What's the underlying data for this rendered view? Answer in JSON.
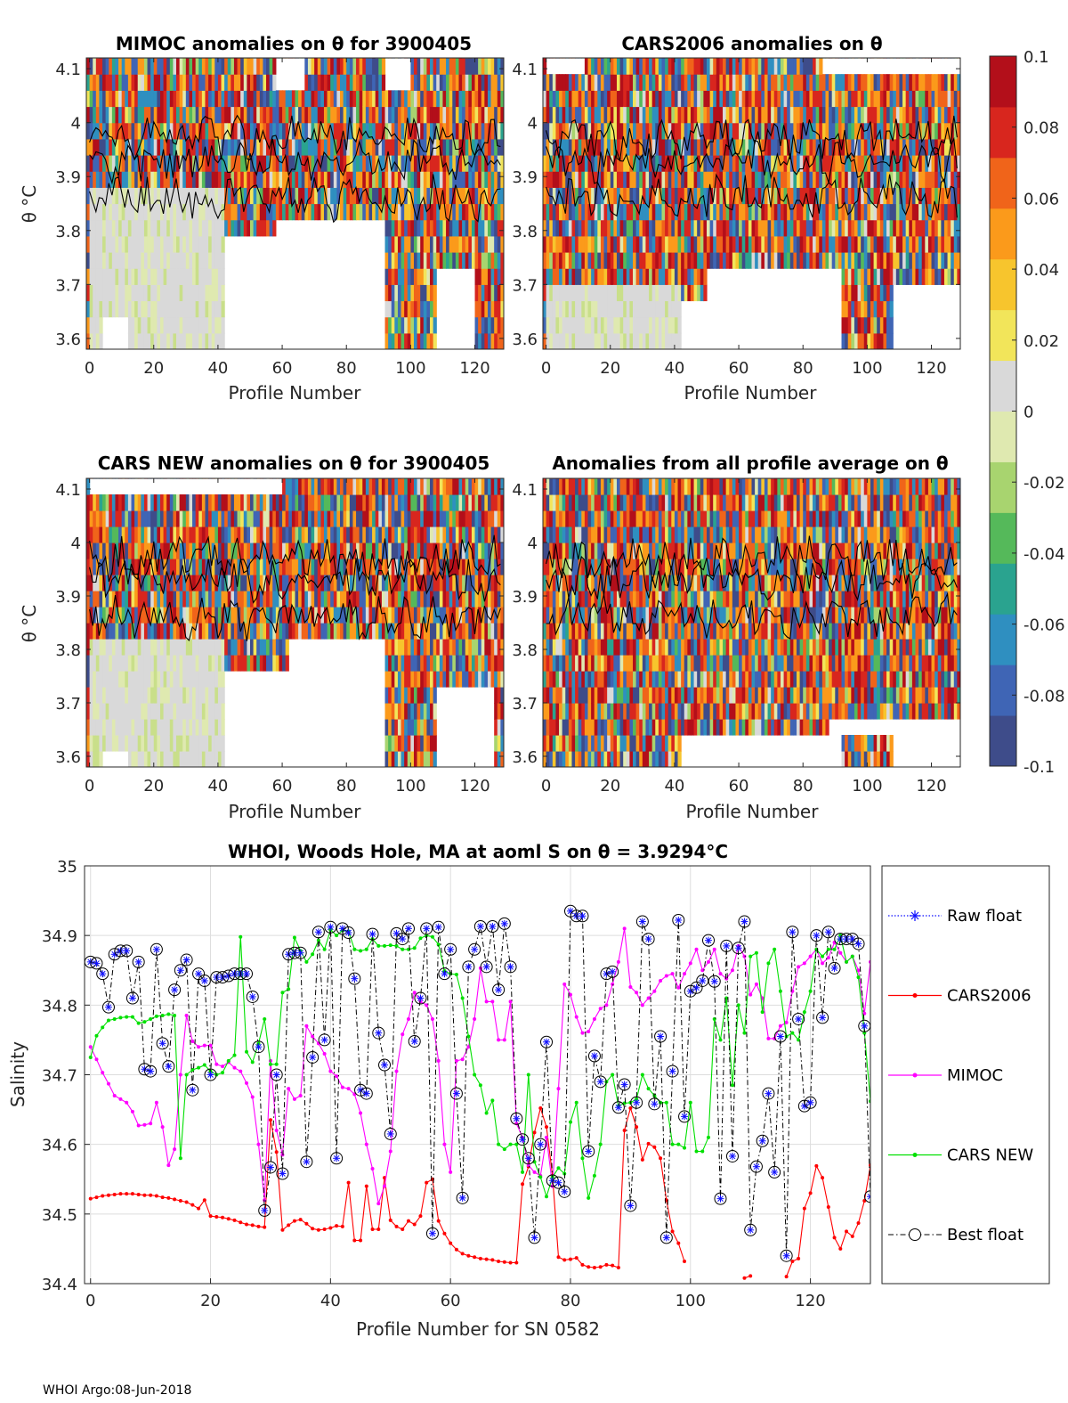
{
  "footer": "WHOI Argo:08-Jun-2018",
  "chart_data": [
    {
      "type": "heatmap",
      "title": "MIMOC anomalies on θ  for 3900405",
      "xlabel": "Profile Number",
      "ylabel": "θ °C",
      "xticks": [
        "0",
        "20",
        "40",
        "60",
        "80",
        "100",
        "120"
      ],
      "yticks": [
        "3.6",
        "3.7",
        "3.8",
        "3.9",
        "4",
        "4.1"
      ],
      "xlim": [
        -1,
        129
      ],
      "ylim": [
        3.58,
        4.12
      ],
      "pattern_seed": 11,
      "gaps": [
        [
          4,
          12,
          3.58,
          3.63
        ],
        [
          42,
          58,
          3.58,
          3.8
        ],
        [
          58,
          92,
          3.58,
          3.83
        ],
        [
          108,
          120,
          3.58,
          3.72
        ],
        [
          58,
          67,
          4.06,
          4.12
        ],
        [
          92,
          100,
          4.06,
          4.12
        ]
      ],
      "cool_region": [
        0,
        42,
        3.58,
        3.87
      ]
    },
    {
      "type": "heatmap",
      "title": "CARS2006 anomalies on θ",
      "xlabel": "Profile Number",
      "ylabel": "",
      "xticks": [
        "0",
        "20",
        "40",
        "60",
        "80",
        "100",
        "120"
      ],
      "yticks": [
        "3.6",
        "3.7",
        "3.8",
        "3.9",
        "4",
        "4.1"
      ],
      "xlim": [
        -1,
        129
      ],
      "ylim": [
        3.58,
        4.12
      ],
      "pattern_seed": 23,
      "gaps": [
        [
          42,
          92,
          3.58,
          3.68
        ],
        [
          50,
          92,
          3.68,
          3.73
        ],
        [
          108,
          130,
          3.58,
          3.7
        ],
        [
          0,
          12,
          4.08,
          4.12
        ],
        [
          86,
          130,
          4.08,
          4.12
        ]
      ],
      "cool_region": [
        0,
        42,
        3.58,
        3.7
      ]
    },
    {
      "type": "heatmap",
      "title": "CARS NEW anomalies on θ for 3900405",
      "xlabel": "Profile Number",
      "ylabel": "θ °C",
      "xticks": [
        "0",
        "20",
        "40",
        "60",
        "80",
        "100",
        "120"
      ],
      "yticks": [
        "3.6",
        "3.7",
        "3.8",
        "3.9",
        "4",
        "4.1"
      ],
      "xlim": [
        -1,
        129
      ],
      "ylim": [
        3.58,
        4.12
      ],
      "pattern_seed": 37,
      "gaps": [
        [
          4,
          12,
          3.58,
          3.62
        ],
        [
          42,
          62,
          3.58,
          3.76
        ],
        [
          62,
          92,
          3.58,
          3.83
        ],
        [
          108,
          126,
          3.58,
          3.72
        ],
        [
          0,
          60,
          4.08,
          4.12
        ]
      ],
      "cool_region": [
        0,
        42,
        3.58,
        3.83
      ]
    },
    {
      "type": "heatmap",
      "title": "Anomalies from all profile average on θ",
      "xlabel": "Profile Number",
      "ylabel": "",
      "xticks": [
        "0",
        "20",
        "40",
        "60",
        "80",
        "100",
        "120"
      ],
      "yticks": [
        "3.6",
        "3.7",
        "3.8",
        "3.9",
        "4",
        "4.1"
      ],
      "xlim": [
        -1,
        129
      ],
      "ylim": [
        3.58,
        4.12
      ],
      "pattern_seed": 53,
      "gaps": [
        [
          42,
          92,
          3.58,
          3.63
        ],
        [
          108,
          130,
          3.58,
          3.65
        ],
        [
          88,
          130,
          3.63,
          3.68
        ]
      ],
      "cool_region": null
    },
    {
      "type": "colorbar",
      "ticks": [
        "0.1",
        "0.08",
        "0.06",
        "0.04",
        "0.02",
        "0",
        "-0.02",
        "-0.04",
        "-0.06",
        "-0.08",
        "-0.1"
      ],
      "range": [
        -0.1,
        0.1
      ],
      "colors": [
        "#3e4c8a",
        "#3f65b5",
        "#2f8fc0",
        "#2aa38f",
        "#55b95a",
        "#a8d46f",
        "#dfe9b0",
        "#d9d9d9",
        "#f2e55a",
        "#f7c52d",
        "#fb9a1b",
        "#f0641a",
        "#d8261e",
        "#b30f1a"
      ]
    },
    {
      "type": "line",
      "title": "WHOI, Woods Hole, MA at aoml S on θ = 3.9294°C",
      "xlabel": "Profile Number for SN 0582",
      "ylabel": "Salinity",
      "xlim": [
        -1,
        130
      ],
      "ylim": [
        34.4,
        35.0
      ],
      "xticks": [
        0,
        20,
        40,
        60,
        80,
        100,
        120
      ],
      "yticks": [
        34.4,
        34.5,
        34.6,
        34.7,
        34.8,
        34.9,
        35.0
      ],
      "ytick_labels": [
        "34.4",
        "34.5",
        "34.6",
        "34.7",
        "34.8",
        "34.9",
        "35"
      ],
      "legend": [
        "Raw float",
        "CARS2006",
        "MIMOC",
        "CARS NEW",
        "Best float"
      ],
      "series": [
        {
          "name": "Best float",
          "color": "#000000",
          "values": [
            34.862,
            34.86,
            34.845,
            34.797,
            34.873,
            34.878,
            34.878,
            34.81,
            34.862,
            34.708,
            34.705,
            34.88,
            34.745,
            34.712,
            34.822,
            34.85,
            34.865,
            34.678,
            34.845,
            34.835,
            34.7,
            34.84,
            34.84,
            34.842,
            34.845,
            34.845,
            34.845,
            34.812,
            34.74,
            34.505,
            34.567,
            34.7,
            34.558,
            34.873,
            34.875,
            34.875,
            34.575,
            34.725,
            34.905,
            34.75,
            34.912,
            34.58,
            34.91,
            34.904,
            34.838,
            34.678,
            34.673,
            34.902,
            34.76,
            34.714,
            34.615,
            34.903,
            34.895,
            34.91,
            34.748,
            34.81,
            34.91,
            34.472,
            34.912,
            34.845,
            34.88,
            34.673,
            34.523,
            34.855,
            34.88,
            34.913,
            34.855,
            34.913,
            34.822,
            34.917,
            34.855,
            34.637,
            34.607,
            34.58,
            34.466,
            34.6,
            34.747,
            34.548,
            34.545,
            34.532,
            34.935,
            34.928,
            34.928,
            34.59,
            34.727,
            34.69,
            34.845,
            34.848,
            34.653,
            34.686,
            34.512,
            34.66,
            34.92,
            34.895,
            34.658,
            34.755,
            34.466,
            34.705,
            34.922,
            34.64,
            34.82,
            34.825,
            34.835,
            34.893,
            34.834,
            34.522,
            34.885,
            34.583,
            34.882,
            34.92,
            34.477,
            34.568,
            34.605,
            34.673,
            34.56,
            34.755,
            34.44,
            34.905,
            34.78,
            34.655,
            34.66,
            34.9,
            34.782,
            34.905,
            34.853,
            34.895,
            34.895,
            34.895,
            34.888,
            34.77,
            34.525
          ]
        },
        {
          "name": "Raw float",
          "color": "#1010ff",
          "values": [
            34.862,
            34.86,
            34.845,
            34.797,
            34.873,
            34.878,
            34.878,
            34.81,
            34.862,
            34.708,
            34.705,
            34.88,
            34.745,
            34.712,
            34.822,
            34.85,
            34.865,
            34.678,
            34.845,
            34.835,
            34.7,
            34.84,
            34.84,
            34.842,
            34.845,
            34.845,
            34.845,
            34.812,
            34.74,
            34.505,
            34.567,
            34.7,
            34.558,
            34.873,
            34.875,
            34.875,
            34.575,
            34.725,
            34.905,
            34.75,
            34.912,
            34.58,
            34.91,
            34.904,
            34.838,
            34.678,
            34.673,
            34.902,
            34.76,
            34.714,
            34.615,
            34.903,
            34.895,
            34.91,
            34.748,
            34.81,
            34.91,
            34.472,
            34.912,
            34.845,
            34.88,
            34.673,
            34.523,
            34.855,
            34.88,
            34.913,
            34.855,
            34.913,
            34.822,
            34.917,
            34.855,
            34.637,
            34.607,
            34.58,
            34.466,
            34.6,
            34.747,
            34.548,
            34.545,
            34.532,
            34.935,
            34.928,
            34.928,
            34.59,
            34.727,
            34.69,
            34.845,
            34.848,
            34.653,
            34.686,
            34.512,
            34.66,
            34.92,
            34.895,
            34.658,
            34.755,
            34.466,
            34.705,
            34.922,
            34.64,
            34.82,
            34.825,
            34.835,
            34.893,
            34.834,
            34.522,
            34.885,
            34.583,
            34.882,
            34.92,
            34.477,
            34.568,
            34.605,
            34.673,
            34.56,
            34.755,
            34.44,
            34.905,
            34.78,
            34.655,
            34.66,
            34.9,
            34.782,
            34.905,
            34.853,
            34.895,
            34.895,
            34.895,
            34.888,
            34.77,
            34.525
          ]
        },
        {
          "name": "CARS2006",
          "color": "#ff0000",
          "values": [
            34.522,
            34.524,
            34.526,
            34.527,
            34.528,
            34.529,
            34.529,
            34.529,
            34.528,
            34.527,
            34.527,
            34.526,
            34.524,
            34.523,
            34.521,
            34.519,
            34.517,
            34.513,
            34.508,
            34.52,
            34.497,
            34.496,
            34.495,
            34.493,
            34.491,
            34.488,
            34.485,
            34.484,
            34.482,
            34.481,
            34.635,
            34.589,
            34.477,
            34.484,
            34.49,
            34.492,
            34.486,
            34.479,
            34.477,
            34.478,
            34.48,
            34.483,
            34.482,
            34.545,
            34.462,
            34.462,
            34.54,
            34.478,
            34.478,
            34.552,
            34.491,
            34.482,
            34.478,
            34.49,
            34.485,
            34.497,
            34.545,
            34.55,
            34.49,
            34.472,
            34.458,
            34.449,
            34.443,
            34.44,
            34.438,
            34.436,
            34.435,
            34.434,
            34.432,
            34.431,
            34.43,
            34.43,
            34.543,
            34.568,
            34.617,
            34.652,
            34.625,
            34.555,
            34.438,
            34.434,
            34.435,
            34.437,
            34.427,
            34.424,
            34.423,
            34.424,
            34.427,
            34.426,
            34.423,
            34.62,
            34.652,
            34.625,
            34.578,
            34.601,
            34.596,
            34.58,
            34.52,
            34.475,
            34.458,
            34.432,
            null,
            null,
            null,
            null,
            null,
            null,
            null,
            null,
            null,
            34.408,
            34.411,
            null,
            null,
            null,
            null,
            null,
            34.41,
            34.432,
            34.436,
            34.508,
            34.53,
            34.569,
            34.552,
            34.51,
            34.466,
            34.45,
            34.475,
            34.468,
            34.487,
            34.519,
            34.57
          ]
        },
        {
          "name": "MIMOC",
          "color": "#ff00ff",
          "values": [
            34.74,
            34.722,
            34.703,
            34.687,
            34.67,
            34.665,
            34.66,
            34.647,
            34.627,
            34.628,
            34.63,
            34.66,
            34.625,
            34.57,
            34.593,
            34.7,
            34.785,
            34.748,
            34.74,
            34.742,
            34.742,
            34.715,
            34.712,
            34.718,
            34.71,
            34.705,
            34.688,
            34.668,
            34.6,
            34.52,
            34.72,
            34.62,
            34.585,
            34.68,
            34.665,
            34.67,
            34.77,
            34.755,
            34.745,
            34.73,
            34.705,
            34.698,
            34.682,
            34.68,
            34.672,
            34.645,
            34.6,
            34.565,
            34.515,
            34.54,
            34.59,
            34.705,
            34.758,
            34.78,
            34.818,
            34.805,
            34.8,
            34.78,
            34.72,
            34.6,
            34.56,
            34.72,
            34.722,
            34.74,
            34.78,
            34.853,
            34.805,
            34.805,
            34.75,
            34.75,
            34.805,
            34.63,
            34.61,
            34.57,
            34.56,
            34.555,
            34.61,
            34.54,
            34.68,
            34.83,
            34.815,
            34.783,
            34.76,
            34.762,
            34.78,
            34.795,
            34.8,
            34.83,
            34.862,
            34.91,
            34.826,
            34.818,
            34.8,
            34.81,
            34.82,
            34.835,
            34.842,
            34.845,
            34.825,
            34.845,
            34.86,
            34.88,
            34.85,
            34.862,
            34.88,
            34.845,
            34.838,
            34.85,
            34.885,
            34.87,
            34.815,
            34.83,
            34.81,
            34.752,
            34.752,
            34.77,
            34.775,
            34.82,
            34.855,
            34.86,
            34.87,
            34.88,
            34.86,
            34.868,
            34.89,
            34.875,
            34.862,
            34.87,
            34.85,
            34.788,
            34.862
          ]
        },
        {
          "name": "CARS NEW",
          "color": "#00e000",
          "values": [
            34.725,
            34.756,
            34.768,
            34.778,
            34.78,
            34.782,
            34.783,
            34.783,
            34.774,
            34.776,
            34.78,
            34.784,
            34.785,
            34.787,
            34.785,
            34.58,
            34.7,
            34.707,
            34.71,
            34.714,
            34.705,
            34.7,
            34.703,
            34.72,
            34.728,
            34.898,
            34.733,
            34.718,
            34.745,
            34.78,
            34.715,
            34.715,
            34.818,
            34.823,
            34.897,
            34.878,
            34.862,
            34.873,
            34.893,
            34.88,
            34.908,
            34.9,
            34.907,
            34.906,
            34.88,
            34.878,
            34.88,
            34.895,
            34.885,
            34.885,
            34.886,
            34.885,
            34.88,
            34.88,
            34.882,
            34.896,
            34.9,
            34.898,
            34.887,
            34.849,
            34.845,
            34.844,
            34.81,
            34.755,
            34.7,
            34.685,
            34.645,
            34.663,
            34.6,
            34.593,
            34.6,
            34.6,
            34.56,
            34.7,
            34.575,
            34.553,
            34.525,
            34.553,
            34.566,
            34.558,
            34.632,
            34.66,
            34.58,
            34.523,
            34.555,
            34.6,
            34.69,
            34.7,
            34.655,
            34.659,
            34.66,
            34.665,
            34.7,
            34.68,
            34.67,
            34.66,
            34.66,
            34.6,
            34.6,
            34.595,
            34.66,
            34.59,
            34.59,
            34.61,
            34.78,
            34.75,
            34.81,
            34.685,
            34.8,
            34.76,
            34.87,
            34.875,
            34.79,
            34.86,
            34.88,
            34.82,
            34.755,
            34.76,
            34.75,
            34.79,
            34.82,
            34.88,
            34.87,
            34.88,
            34.88,
            34.9,
            34.862,
            34.87,
            34.84,
            34.76,
            34.662
          ]
        }
      ]
    }
  ]
}
